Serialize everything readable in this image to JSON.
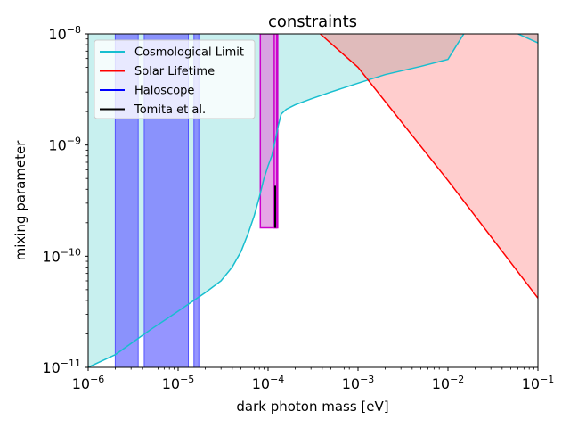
{
  "chart_data": {
    "type": "area",
    "title": "constraints",
    "xlabel": "dark photon mass [eV]",
    "ylabel": "mixing parameter",
    "xscale": "log",
    "yscale": "log",
    "xlim": [
      1e-06,
      0.1
    ],
    "ylim": [
      1e-11,
      1e-08
    ],
    "x_ticks": [
      {
        "value": 1e-06,
        "base": "10",
        "exp": "−6"
      },
      {
        "value": 1e-05,
        "base": "10",
        "exp": "−5"
      },
      {
        "value": 0.0001,
        "base": "10",
        "exp": "−4"
      },
      {
        "value": 0.001,
        "base": "10",
        "exp": "−3"
      },
      {
        "value": 0.01,
        "base": "10",
        "exp": "−2"
      },
      {
        "value": 0.1,
        "base": "10",
        "exp": "−1"
      }
    ],
    "y_ticks": [
      {
        "value": 1e-11,
        "base": "10",
        "exp": "−11"
      },
      {
        "value": 1e-10,
        "base": "10",
        "exp": "−10"
      },
      {
        "value": 1e-09,
        "base": "10",
        "exp": "−9"
      },
      {
        "value": 1e-08,
        "base": "10",
        "exp": "−8"
      }
    ],
    "grid": false,
    "legend": {
      "position": "top-left",
      "entries": [
        {
          "label": "Cosmological Limit",
          "color": "#17becf"
        },
        {
          "label": "Solar Lifetime",
          "color": "#ff0000"
        },
        {
          "label": "Haloscope",
          "color": "#0000ff"
        },
        {
          "label": "Tomita et al.",
          "color": "#000000"
        }
      ]
    },
    "series": [
      {
        "name": "Cosmological Limit",
        "color": "#17becf",
        "fill": "#c8f0ef",
        "points": [
          [
            1e-06,
            1e-11
          ],
          [
            2e-06,
            1.3e-11
          ],
          [
            5e-06,
            2.2e-11
          ],
          [
            1e-05,
            3.2e-11
          ],
          [
            2e-05,
            4.7e-11
          ],
          [
            3e-05,
            6e-11
          ],
          [
            4e-05,
            8e-11
          ],
          [
            5e-05,
            1.1e-10
          ],
          [
            6e-05,
            1.6e-10
          ],
          [
            7e-05,
            2.3e-10
          ],
          [
            8e-05,
            3.4e-10
          ],
          [
            9e-05,
            5e-10
          ],
          [
            0.0001,
            6.5e-10
          ],
          [
            0.00011,
            8e-10
          ],
          [
            0.00012,
            1.1e-09
          ],
          [
            0.00013,
            1.5e-09
          ],
          [
            0.00014,
            1.9e-09
          ],
          [
            0.00016,
            2.1e-09
          ],
          [
            0.0002,
            2.3e-09
          ],
          [
            0.0003,
            2.6e-09
          ],
          [
            0.0005,
            3e-09
          ],
          [
            0.001,
            3.6e-09
          ],
          [
            0.002,
            4.3e-09
          ],
          [
            0.005,
            5.1e-09
          ],
          [
            0.01,
            5.9e-09
          ],
          [
            0.012,
            7.5e-09
          ],
          [
            0.015,
            1e-08
          ]
        ],
        "upper_branch": [
          [
            0.06,
            1e-08
          ],
          [
            0.08,
            9e-09
          ],
          [
            0.1,
            8.3e-09
          ]
        ]
      },
      {
        "name": "Solar Lifetime",
        "color": "#ff0000",
        "fill": "#ffc8c8",
        "points": [
          [
            0.00038,
            1e-08
          ],
          [
            0.001,
            5e-09
          ],
          [
            0.01,
            4.8e-10
          ],
          [
            0.1,
            4.2e-11
          ]
        ]
      },
      {
        "name": "Haloscope",
        "color": "#0000ff",
        "fill": "#7b7bff",
        "bands": [
          [
            2e-06,
            3.6e-06
          ],
          [
            4.2e-06,
            1.3e-05
          ],
          [
            1.5e-05,
            1.7e-05
          ]
        ]
      },
      {
        "name": "Tomita et al.",
        "color": "#000000",
        "segments": [
          {
            "x": 0.00012,
            "y0": 1.8e-10,
            "y1": 4.3e-10
          }
        ]
      }
    ],
    "annotations": [
      {
        "type": "rect",
        "edge": "#cc00cc",
        "fill": "#dd88dd",
        "x0": 8.2e-05,
        "x1": 0.000128,
        "y0": 1.8e-10,
        "y1": 1e-08
      },
      {
        "type": "rect",
        "edge": "#cc00cc",
        "fill": "#dd88dd",
        "x0": 0.000117,
        "x1": 0.000125,
        "y0": 1.8e-10,
        "y1": 1e-08
      }
    ]
  }
}
